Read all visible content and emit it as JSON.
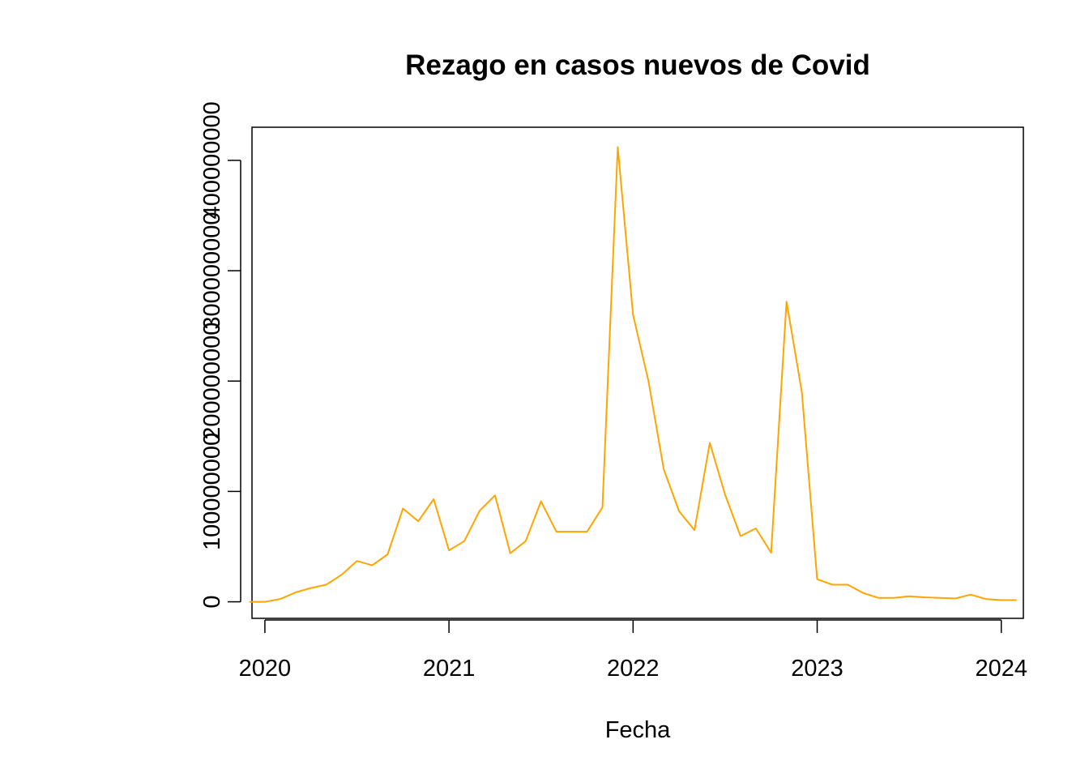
{
  "chart_data": {
    "type": "line",
    "title": "Rezago en casos nuevos de Covid",
    "xlabel": "Fecha",
    "ylabel": "",
    "line_color": "#FFA500",
    "xlim": [
      2019.93,
      2024.12
    ],
    "ylim": [
      -15000000,
      430000000
    ],
    "x_ticks": [
      {
        "value": 2020,
        "label": "2020"
      },
      {
        "value": 2021,
        "label": "2021"
      },
      {
        "value": 2022,
        "label": "2022"
      },
      {
        "value": 2023,
        "label": "2023"
      },
      {
        "value": 2024,
        "label": "2024"
      }
    ],
    "y_ticks": [
      {
        "value": 0,
        "label": "0"
      },
      {
        "value": 100000000,
        "label": "100000000"
      },
      {
        "value": 200000000,
        "label": "200000000"
      },
      {
        "value": 300000000,
        "label": "300000000"
      },
      {
        "value": 400000000,
        "label": "400000000"
      }
    ],
    "grid": false,
    "legend": "none",
    "series": [
      {
        "x": [
          "2019-12",
          "2020-01",
          "2020-02",
          "2020-03",
          "2020-04",
          "2020-05",
          "2020-06",
          "2020-07",
          "2020-08",
          "2020-09",
          "2020-10",
          "2020-11",
          "2020-12",
          "2021-01",
          "2021-02",
          "2021-03",
          "2021-04",
          "2021-05",
          "2021-06",
          "2021-07",
          "2021-08",
          "2021-09",
          "2021-10",
          "2021-11",
          "2021-12",
          "2022-01",
          "2022-02",
          "2022-03",
          "2022-04",
          "2022-05",
          "2022-06",
          "2022-07",
          "2022-08",
          "2022-09",
          "2022-10",
          "2022-11",
          "2022-12",
          "2023-01",
          "2023-02",
          "2023-03",
          "2023-04",
          "2023-05",
          "2023-06",
          "2023-07",
          "2023-08",
          "2023-09",
          "2023-10",
          "2023-11",
          "2023-12",
          "2024-01",
          "2024-02"
        ],
        "values": [
          0,
          0,
          2500000,
          8500000,
          12500000,
          15500000,
          24500000,
          37000000,
          33000000,
          43000000,
          84500000,
          73000000,
          93000000,
          46500000,
          55000000,
          82500000,
          96500000,
          44000000,
          55000000,
          91000000,
          63500000,
          63500000,
          63500000,
          85500000,
          412000000,
          260000000,
          200000000,
          120000000,
          82000000,
          65000000,
          144000000,
          97000000,
          59500000,
          66500000,
          44500000,
          272000000,
          190000000,
          20500000,
          15500000,
          15500000,
          8000000,
          3500000,
          3500000,
          5000000,
          4000000,
          3500000,
          3000000,
          6500000,
          2500000,
          1500000,
          1500000
        ]
      }
    ]
  }
}
